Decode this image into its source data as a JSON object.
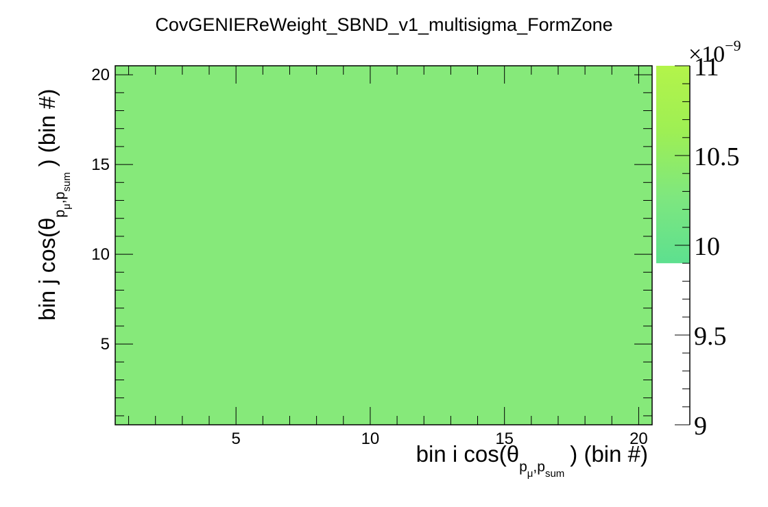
{
  "chart_data": {
    "type": "heatmap",
    "title": "CovGENIEReWeight_SBND_v1_multisigma_FormZone",
    "xlabel": {
      "before": "bin i cos(θ",
      "sub_p1": "p",
      "sub_mu": "μ",
      "sub_p2": "p",
      "sub_sum": "sum",
      "after": ") (bin #)"
    },
    "ylabel": {
      "before": "bin j cos(θ",
      "sub_p1": "p",
      "sub_mu": "μ",
      "sub_p2": "p",
      "sub_sum": "sum",
      "after": ") (bin #)"
    },
    "x_range": [
      0.5,
      20.5
    ],
    "y_range": [
      0.5,
      20.5
    ],
    "x_ticks": [
      5,
      10,
      15,
      20
    ],
    "y_ticks": [
      5,
      10,
      15,
      20
    ],
    "z_range": [
      9e-09,
      1.1e-08
    ],
    "z_exponent_label": "×10",
    "z_exponent_power": "−9",
    "z_ticks": [
      {
        "value": 9.0,
        "label": "9"
      },
      {
        "value": 9.5,
        "label": "9.5"
      },
      {
        "value": 10.0,
        "label": "10"
      },
      {
        "value": 10.5,
        "label": "10.5"
      },
      {
        "value": 11.0,
        "label": "11"
      }
    ],
    "cell_value_scaled": 9.87,
    "cell_color": "#86e97a",
    "palette_visible_from": 9.9,
    "palette_colors": [
      "#5de08f",
      "#7ee77f",
      "#9eef54",
      "#b3f44a"
    ]
  }
}
